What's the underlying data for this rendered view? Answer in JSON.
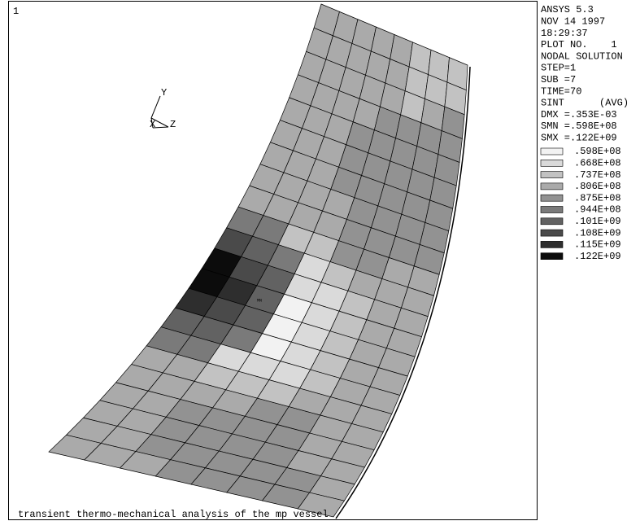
{
  "window": {
    "number": "1"
  },
  "triad": {
    "y": "Y",
    "x": "X",
    "z": "Z"
  },
  "marker": "MN",
  "caption": "transient thermo-mechanical analysis of the mp vessel",
  "info": [
    "ANSYS 5.3",
    "NOV 14 1997",
    "18:29:37",
    "PLOT NO.    1",
    "NODAL SOLUTION",
    "STEP=1",
    "SUB =7",
    "TIME=70",
    "SINT      (AVG)",
    "DMX =.353E-03",
    "SMN =.598E+08",
    "SMX =.122E+09"
  ],
  "legend": {
    "levels": [
      {
        "label": ".598E+08",
        "color": "#f2f2f2"
      },
      {
        "label": ".668E+08",
        "color": "#dadada"
      },
      {
        "label": ".737E+08",
        "color": "#c2c2c2"
      },
      {
        "label": ".806E+08",
        "color": "#aaaaaa"
      },
      {
        "label": ".875E+08",
        "color": "#929292"
      },
      {
        "label": ".944E+08",
        "color": "#7a7a7a"
      },
      {
        "label": ".101E+09",
        "color": "#626262"
      },
      {
        "label": ".108E+09",
        "color": "#4a4a4a"
      },
      {
        "label": ".115E+09",
        "color": "#2e2e2e"
      },
      {
        "label": ".122E+09",
        "color": "#0c0c0c"
      }
    ]
  }
}
